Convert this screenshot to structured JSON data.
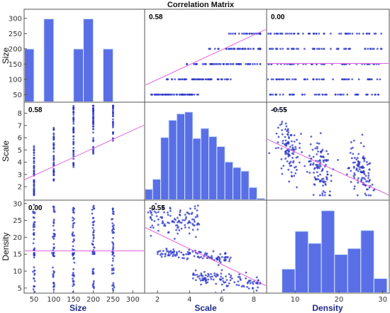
{
  "chart_data": {
    "type": "scatter-matrix",
    "title": "Correlation Matrix",
    "variables": [
      "Size",
      "Scale",
      "Density"
    ],
    "colors": {
      "bar": "#5a6fe6",
      "bar_edge": "#3f51c4",
      "point": "#2a34c8",
      "fit": "#e060e0",
      "frame": "#555555"
    },
    "correlations": [
      [
        "",
        "0.58",
        "0.00"
      ],
      [
        "0.58",
        "",
        "-0.55"
      ],
      [
        "0.00",
        "-0.55",
        ""
      ]
    ],
    "axes": {
      "Size": {
        "range": [
          25,
          330
        ],
        "ticks": [
          50,
          100,
          150,
          200,
          250,
          300
        ],
        "tick_labels": [
          "50",
          "100",
          "150",
          "200",
          "250",
          "300"
        ]
      },
      "Scale": {
        "range": [
          1.2,
          8.8
        ],
        "ticks": [
          2,
          4,
          6,
          8
        ],
        "tick_labels": [
          "2",
          "4",
          "6",
          "8"
        ]
      },
      "Density": {
        "range": [
          3.5,
          31.5
        ],
        "ticks": [
          10,
          20,
          30
        ],
        "tick_labels": [
          "10",
          "20",
          "30"
        ]
      }
    },
    "y_axes": {
      "Size": {
        "range": [
          25,
          330
        ],
        "ticks": [
          50,
          100,
          150,
          200,
          250,
          300
        ],
        "tick_labels": [
          "50",
          "100",
          "150",
          "200",
          "250",
          "300"
        ]
      },
      "Scale": {
        "range": [
          0.9,
          8.9
        ],
        "ticks": [
          2,
          3,
          4,
          5,
          6,
          7,
          8
        ],
        "tick_labels": [
          "2",
          "3",
          "4",
          "5",
          "6",
          "7",
          "8"
        ]
      },
      "Density": {
        "range": [
          3.5,
          31
        ],
        "ticks": [
          5,
          10,
          15,
          20,
          25,
          30
        ],
        "tick_labels": [
          "5",
          "10",
          "15",
          "20",
          "25",
          "30"
        ]
      }
    },
    "histograms": {
      "Size": {
        "bins": [
          [
            25,
            50
          ],
          [
            75,
            100
          ],
          [
            150,
            175
          ],
          [
            175,
            200
          ],
          [
            225,
            250
          ]
        ],
        "heights_frac": [
          0.62,
          0.97,
          0.62,
          0.97,
          0.62
        ]
      },
      "Scale": {
        "edges": [
          1.2,
          1.7,
          2.2,
          2.7,
          3.2,
          3.7,
          4.2,
          4.7,
          5.2,
          5.7,
          6.2,
          6.7,
          7.2,
          7.7,
          8.2,
          8.7
        ],
        "heights_frac": [
          0.12,
          0.23,
          0.69,
          0.88,
          0.95,
          0.97,
          0.68,
          0.79,
          0.7,
          0.59,
          0.42,
          0.36,
          0.32,
          0.14,
          0.02
        ]
      },
      "Density": {
        "edges": [
          7,
          10,
          13,
          16,
          19,
          22,
          25,
          28,
          31
        ],
        "heights_frac": [
          0.28,
          0.72,
          0.58,
          0.96,
          0.45,
          0.52,
          0.73,
          0.17
        ]
      }
    },
    "fit_lines": {
      "Size_vs_Scale": [
        [
          1.2,
          80
        ],
        [
          8.8,
          265
        ]
      ],
      "Size_vs_Density": [
        [
          3.5,
          152
        ],
        [
          31.5,
          152
        ]
      ],
      "Scale_vs_Size": [
        [
          25,
          2.55
        ],
        [
          330,
          7.05
        ]
      ],
      "Scale_vs_Density": [
        [
          3.5,
          5.9
        ],
        [
          31.5,
          1.3
        ]
      ],
      "Density_vs_Size": [
        [
          25,
          16
        ],
        [
          330,
          16
        ]
      ],
      "Density_vs_Scale": [
        [
          1.2,
          23
        ],
        [
          8.8,
          5.6
        ]
      ]
    }
  }
}
